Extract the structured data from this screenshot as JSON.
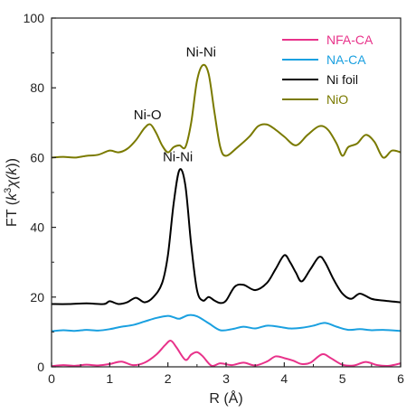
{
  "chart_data": {
    "type": "line",
    "xlabel": "R (Å)",
    "ylabel_prefix": "FT (",
    "ylabel_k": "k",
    "ylabel_sup": "3",
    "ylabel_chi": "χ(",
    "ylabel_k2": "k",
    "ylabel_suffix": "))",
    "xlim": [
      0,
      6
    ],
    "ylim": [
      0,
      100
    ],
    "x_ticks": [
      "0",
      "1",
      "2",
      "3",
      "4",
      "5",
      "6"
    ],
    "y_ticks": [
      "0",
      "20",
      "40",
      "60",
      "80",
      "100"
    ],
    "grid": false,
    "legend_position": "top-right",
    "annotations": [
      {
        "text": "Ni-Ni",
        "x": 2.57,
        "y": 89
      },
      {
        "text": "Ni-O",
        "x": 1.65,
        "y": 71
      },
      {
        "text": "Ni-Ni",
        "x": 2.17,
        "y": 59
      }
    ],
    "series": [
      {
        "name": "NFA-CA",
        "color": "#e8328a",
        "x": [
          0,
          0.2,
          0.4,
          0.6,
          0.8,
          1.0,
          1.2,
          1.4,
          1.6,
          1.8,
          1.95,
          2.05,
          2.15,
          2.3,
          2.4,
          2.5,
          2.6,
          2.75,
          2.9,
          3.1,
          3.3,
          3.5,
          3.7,
          3.85,
          4.0,
          4.15,
          4.3,
          4.45,
          4.65,
          4.8,
          5.0,
          5.2,
          5.4,
          5.6,
          5.8,
          6.0
        ],
        "y": [
          0.2,
          0.5,
          0.3,
          0.6,
          0.4,
          0.8,
          1.5,
          0.5,
          1.2,
          3.5,
          6.2,
          7.5,
          5.5,
          2.0,
          3.5,
          4.2,
          3.0,
          0.3,
          1.0,
          0.5,
          1.2,
          0.4,
          1.5,
          3.0,
          2.5,
          1.8,
          0.8,
          1.2,
          3.6,
          2.5,
          0.6,
          0.4,
          1.4,
          0.5,
          0.3,
          1.0
        ]
      },
      {
        "name": "NA-CA",
        "color": "#1aa0e0",
        "x": [
          0,
          0.2,
          0.4,
          0.6,
          0.8,
          1.0,
          1.2,
          1.4,
          1.6,
          1.8,
          2.0,
          2.1,
          2.2,
          2.35,
          2.5,
          2.7,
          2.9,
          3.1,
          3.3,
          3.5,
          3.7,
          3.9,
          4.1,
          4.3,
          4.5,
          4.7,
          4.9,
          5.1,
          5.3,
          5.5,
          5.7,
          6.0
        ],
        "y": [
          10.2,
          10.5,
          10.3,
          10.6,
          10.4,
          10.8,
          11.5,
          12.0,
          13.0,
          14.0,
          14.6,
          14.2,
          13.8,
          14.8,
          14.5,
          12.5,
          10.5,
          10.8,
          11.5,
          11.0,
          11.8,
          11.5,
          11.0,
          11.2,
          11.8,
          12.6,
          11.5,
          10.6,
          10.8,
          10.5,
          10.6,
          10.3
        ]
      },
      {
        "name": "Ni foil",
        "color": "#000000",
        "x": [
          0,
          0.3,
          0.6,
          0.9,
          1.0,
          1.15,
          1.3,
          1.45,
          1.6,
          1.75,
          1.9,
          2.0,
          2.1,
          2.2,
          2.3,
          2.4,
          2.5,
          2.6,
          2.7,
          2.8,
          2.9,
          3.0,
          3.15,
          3.3,
          3.5,
          3.7,
          3.85,
          4.0,
          4.1,
          4.2,
          4.3,
          4.45,
          4.6,
          4.7,
          4.85,
          5.0,
          5.15,
          5.3,
          5.5,
          5.7,
          6.0
        ],
        "y": [
          18.0,
          18.0,
          18.2,
          18.0,
          18.8,
          18.0,
          18.5,
          19.8,
          18.5,
          20.0,
          24.0,
          32.0,
          47.0,
          56.5,
          52.0,
          35.0,
          22.0,
          19.0,
          20.0,
          19.0,
          18.3,
          19.0,
          23.0,
          23.5,
          22.0,
          24.0,
          28.0,
          32.0,
          30.0,
          27.0,
          24.5,
          28.0,
          31.5,
          30.0,
          25.0,
          21.0,
          19.5,
          21.0,
          19.5,
          19.0,
          18.5
        ]
      },
      {
        "name": "NiO",
        "color": "#7a7a00",
        "x": [
          0,
          0.2,
          0.4,
          0.6,
          0.8,
          1.0,
          1.15,
          1.3,
          1.45,
          1.6,
          1.7,
          1.8,
          1.9,
          2.0,
          2.1,
          2.2,
          2.3,
          2.4,
          2.5,
          2.6,
          2.7,
          2.8,
          2.9,
          3.0,
          3.2,
          3.4,
          3.55,
          3.7,
          3.85,
          4.0,
          4.2,
          4.4,
          4.6,
          4.75,
          4.9,
          5.0,
          5.1,
          5.25,
          5.4,
          5.55,
          5.7,
          5.85,
          6.0
        ],
        "y": [
          60.0,
          60.2,
          60.0,
          60.5,
          60.8,
          62.0,
          61.5,
          62.5,
          65.0,
          68.5,
          69.5,
          67.0,
          63.5,
          61.5,
          63.0,
          63.5,
          63.0,
          70.0,
          82.0,
          86.5,
          84.0,
          73.0,
          63.0,
          60.5,
          63.0,
          66.0,
          69.0,
          69.5,
          68.0,
          66.0,
          63.5,
          66.5,
          69.0,
          68.0,
          64.0,
          60.5,
          63.0,
          64.0,
          66.5,
          64.5,
          60.0,
          62.0,
          61.5
        ]
      }
    ]
  }
}
